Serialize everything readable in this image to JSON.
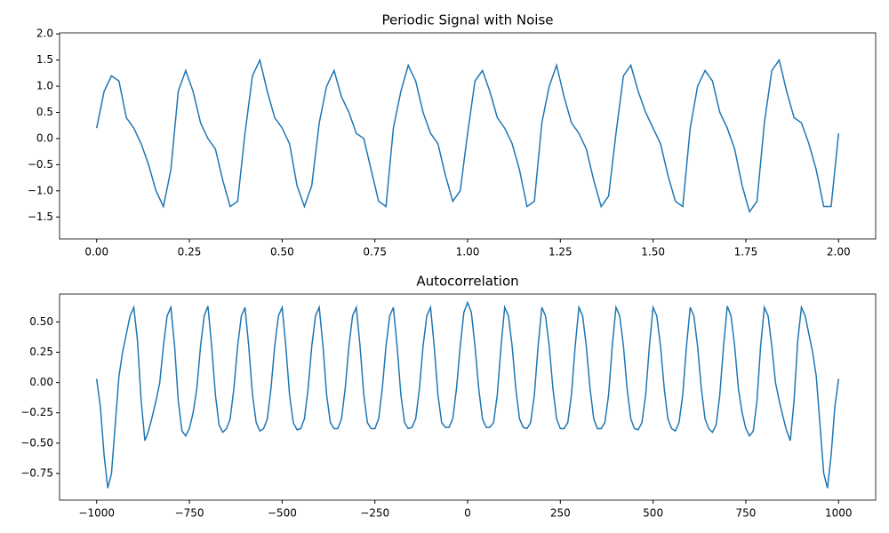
{
  "chart_data": [
    {
      "type": "line",
      "title": "Periodic Signal with Noise",
      "x": [
        0,
        0.02,
        0.04,
        0.06,
        0.08,
        0.1,
        0.12,
        0.14,
        0.16,
        0.18,
        0.2,
        0.22,
        0.24,
        0.26,
        0.28,
        0.3,
        0.32,
        0.34,
        0.36,
        0.38,
        0.4,
        0.42,
        0.44,
        0.46,
        0.48,
        0.5,
        0.52,
        0.54,
        0.56,
        0.58,
        0.6,
        0.62,
        0.64,
        0.66,
        0.68,
        0.7,
        0.72,
        0.74,
        0.76,
        0.78,
        0.8,
        0.82,
        0.84,
        0.86,
        0.88,
        0.9,
        0.92,
        0.94,
        0.96,
        0.98,
        1,
        1.02,
        1.04,
        1.06,
        1.08,
        1.1,
        1.12,
        1.14,
        1.16,
        1.18,
        1.2,
        1.22,
        1.24,
        1.26,
        1.28,
        1.3,
        1.32,
        1.34,
        1.36,
        1.38,
        1.4,
        1.42,
        1.44,
        1.46,
        1.48,
        1.5,
        1.52,
        1.54,
        1.56,
        1.58,
        1.6,
        1.62,
        1.64,
        1.66,
        1.68,
        1.7,
        1.72,
        1.74,
        1.76,
        1.78,
        1.8,
        1.82,
        1.84,
        1.86,
        1.88,
        1.9,
        1.92,
        1.94,
        1.96,
        1.98,
        2
      ],
      "series": [
        {
          "color": "#1f77b4",
          "values": [
            0.2,
            0.9,
            1.2,
            1.1,
            0.4,
            0.2,
            -0.1,
            -0.5,
            -1.0,
            -1.3,
            -0.6,
            0.9,
            1.3,
            0.9,
            0.3,
            0.0,
            -0.2,
            -0.8,
            -1.3,
            -1.2,
            0.1,
            1.2,
            1.5,
            0.9,
            0.4,
            0.2,
            -0.1,
            -0.9,
            -1.3,
            -0.9,
            0.3,
            1.0,
            1.3,
            0.8,
            0.5,
            0.1,
            0.0,
            -0.6,
            -1.2,
            -1.3,
            0.2,
            0.9,
            1.4,
            1.1,
            0.5,
            0.1,
            -0.1,
            -0.7,
            -1.2,
            -1.0,
            0.1,
            1.1,
            1.3,
            0.9,
            0.4,
            0.2,
            -0.1,
            -0.6,
            -1.3,
            -1.2,
            0.3,
            1.0,
            1.4,
            0.8,
            0.3,
            0.1,
            -0.2,
            -0.8,
            -1.3,
            -1.1,
            0.1,
            1.2,
            1.4,
            0.9,
            0.5,
            0.2,
            -0.1,
            -0.7,
            -1.2,
            -1.3,
            0.2,
            1.0,
            1.3,
            1.1,
            0.5,
            0.2,
            -0.2,
            -0.9,
            -1.4,
            -1.2,
            0.3,
            1.3,
            1.5,
            0.9,
            0.4,
            0.3,
            -0.1,
            -0.6,
            -1.3,
            -1.3,
            0.1
          ]
        }
      ],
      "xlim": [
        -0.1,
        2.1
      ],
      "ylim": [
        -1.92,
        2.02
      ],
      "xticks": [
        {
          "value": 0,
          "label": "0.00"
        },
        {
          "value": 0.25,
          "label": "0.25"
        },
        {
          "value": 0.5,
          "label": "0.50"
        },
        {
          "value": 0.75,
          "label": "0.75"
        },
        {
          "value": 1,
          "label": "1.00"
        },
        {
          "value": 1.25,
          "label": "1.25"
        },
        {
          "value": 1.5,
          "label": "1.50"
        },
        {
          "value": 1.75,
          "label": "1.75"
        },
        {
          "value": 2,
          "label": "2.00"
        }
      ],
      "yticks": [
        {
          "value": -1.5,
          "label": "−1.5"
        },
        {
          "value": -1,
          "label": "−1.0"
        },
        {
          "value": -0.5,
          "label": "−0.5"
        },
        {
          "value": 0,
          "label": "0.0"
        },
        0.5,
        {
          "value": 1,
          "label": "1.0"
        },
        1.5,
        {
          "value": 2,
          "label": "2.0"
        }
      ]
    },
    {
      "type": "line",
      "title": "Autocorrelation",
      "x": [
        -1000,
        -990,
        -980,
        -970,
        -960,
        -950,
        -940,
        -930,
        -920,
        -910,
        -900,
        -890,
        -880,
        -870,
        -860,
        -850,
        -840,
        -830,
        -820,
        -810,
        -800,
        -790,
        -780,
        -770,
        -760,
        -750,
        -740,
        -730,
        -720,
        -710,
        -700,
        -690,
        -680,
        -670,
        -660,
        -650,
        -640,
        -630,
        -620,
        -610,
        -600,
        -590,
        -580,
        -570,
        -560,
        -550,
        -540,
        -530,
        -520,
        -510,
        -500,
        -490,
        -480,
        -470,
        -460,
        -450,
        -440,
        -430,
        -420,
        -410,
        -400,
        -390,
        -380,
        -370,
        -360,
        -350,
        -340,
        -330,
        -320,
        -310,
        -300,
        -290,
        -280,
        -270,
        -260,
        -250,
        -240,
        -230,
        -220,
        -210,
        -200,
        -190,
        -180,
        -170,
        -160,
        -150,
        -140,
        -130,
        -120,
        -110,
        -100,
        -90,
        -80,
        -70,
        -60,
        -50,
        -40,
        -30,
        -20,
        -10,
        0,
        10,
        20,
        30,
        40,
        50,
        60,
        70,
        80,
        90,
        100,
        110,
        120,
        130,
        140,
        150,
        160,
        170,
        180,
        190,
        200,
        210,
        220,
        230,
        240,
        250,
        260,
        270,
        280,
        290,
        300,
        310,
        320,
        330,
        340,
        350,
        360,
        370,
        380,
        390,
        400,
        410,
        420,
        430,
        440,
        450,
        460,
        470,
        480,
        490,
        500,
        510,
        520,
        530,
        540,
        550,
        560,
        570,
        580,
        590,
        600,
        610,
        620,
        630,
        640,
        650,
        660,
        670,
        680,
        690,
        700,
        710,
        720,
        730,
        740,
        750,
        760,
        770,
        780,
        790,
        800,
        810,
        820,
        830,
        840,
        850,
        860,
        870,
        880,
        890,
        900,
        910,
        920,
        930,
        940,
        950,
        960,
        970,
        980,
        990,
        1000
      ],
      "series": [
        {
          "color": "#1f77b4",
          "values": [
            0.03,
            -0.2,
            -0.6,
            -0.87,
            -0.75,
            -0.35,
            0.05,
            0.25,
            0.4,
            0.55,
            0.62,
            0.35,
            -0.15,
            -0.48,
            -0.4,
            -0.28,
            -0.15,
            0.0,
            0.3,
            0.55,
            0.62,
            0.3,
            -0.15,
            -0.4,
            -0.44,
            -0.38,
            -0.25,
            -0.05,
            0.3,
            0.55,
            0.63,
            0.3,
            -0.1,
            -0.35,
            -0.41,
            -0.38,
            -0.3,
            -0.05,
            0.3,
            0.55,
            0.62,
            0.3,
            -0.1,
            -0.33,
            -0.4,
            -0.38,
            -0.3,
            -0.05,
            0.3,
            0.55,
            0.62,
            0.3,
            -0.1,
            -0.33,
            -0.39,
            -0.38,
            -0.3,
            -0.05,
            0.3,
            0.55,
            0.62,
            0.3,
            -0.1,
            -0.33,
            -0.38,
            -0.38,
            -0.3,
            -0.05,
            0.3,
            0.55,
            0.62,
            0.3,
            -0.1,
            -0.33,
            -0.38,
            -0.38,
            -0.3,
            -0.05,
            0.3,
            0.55,
            0.62,
            0.3,
            -0.1,
            -0.33,
            -0.38,
            -0.37,
            -0.3,
            -0.05,
            0.3,
            0.55,
            0.62,
            0.3,
            -0.1,
            -0.33,
            -0.37,
            -0.37,
            -0.3,
            -0.05,
            0.3,
            0.58,
            0.66,
            0.58,
            0.3,
            -0.05,
            -0.3,
            -0.37,
            -0.37,
            -0.33,
            -0.1,
            0.3,
            0.62,
            0.55,
            0.3,
            -0.05,
            -0.3,
            -0.37,
            -0.38,
            -0.33,
            -0.1,
            0.3,
            0.62,
            0.55,
            0.3,
            -0.05,
            -0.3,
            -0.38,
            -0.38,
            -0.33,
            -0.1,
            0.3,
            0.62,
            0.55,
            0.3,
            -0.05,
            -0.3,
            -0.38,
            -0.38,
            -0.33,
            -0.1,
            0.3,
            0.62,
            0.55,
            0.3,
            -0.05,
            -0.3,
            -0.38,
            -0.39,
            -0.33,
            -0.1,
            0.3,
            0.62,
            0.55,
            0.3,
            -0.05,
            -0.3,
            -0.38,
            -0.4,
            -0.33,
            -0.1,
            0.3,
            0.62,
            0.55,
            0.3,
            -0.05,
            -0.3,
            -0.38,
            -0.41,
            -0.35,
            -0.1,
            0.3,
            0.63,
            0.55,
            0.3,
            -0.05,
            -0.25,
            -0.38,
            -0.44,
            -0.4,
            -0.15,
            0.3,
            0.62,
            0.55,
            0.3,
            0.0,
            -0.15,
            -0.28,
            -0.4,
            -0.48,
            -0.15,
            0.35,
            0.62,
            0.55,
            0.4,
            0.25,
            0.05,
            -0.35,
            -0.75,
            -0.87,
            -0.6,
            -0.2,
            0.03
          ]
        }
      ],
      "xlim": [
        -1100,
        1100
      ],
      "ylim": [
        -0.97,
        0.73
      ],
      "xticks": [
        {
          "value": -1000,
          "label": "−1000"
        },
        {
          "value": -750,
          "label": "−750"
        },
        {
          "value": -500,
          "label": "−500"
        },
        {
          "value": -250,
          "label": "−250"
        },
        0,
        250,
        500,
        750,
        1000
      ],
      "yticks": [
        {
          "value": -0.75,
          "label": "−0.75"
        },
        {
          "value": -0.5,
          "label": "−0.50"
        },
        {
          "value": -0.25,
          "label": "−0.25"
        },
        {
          "value": 0,
          "label": "0.00"
        },
        0.25,
        {
          "value": 0.5,
          "label": "0.50"
        }
      ]
    }
  ]
}
